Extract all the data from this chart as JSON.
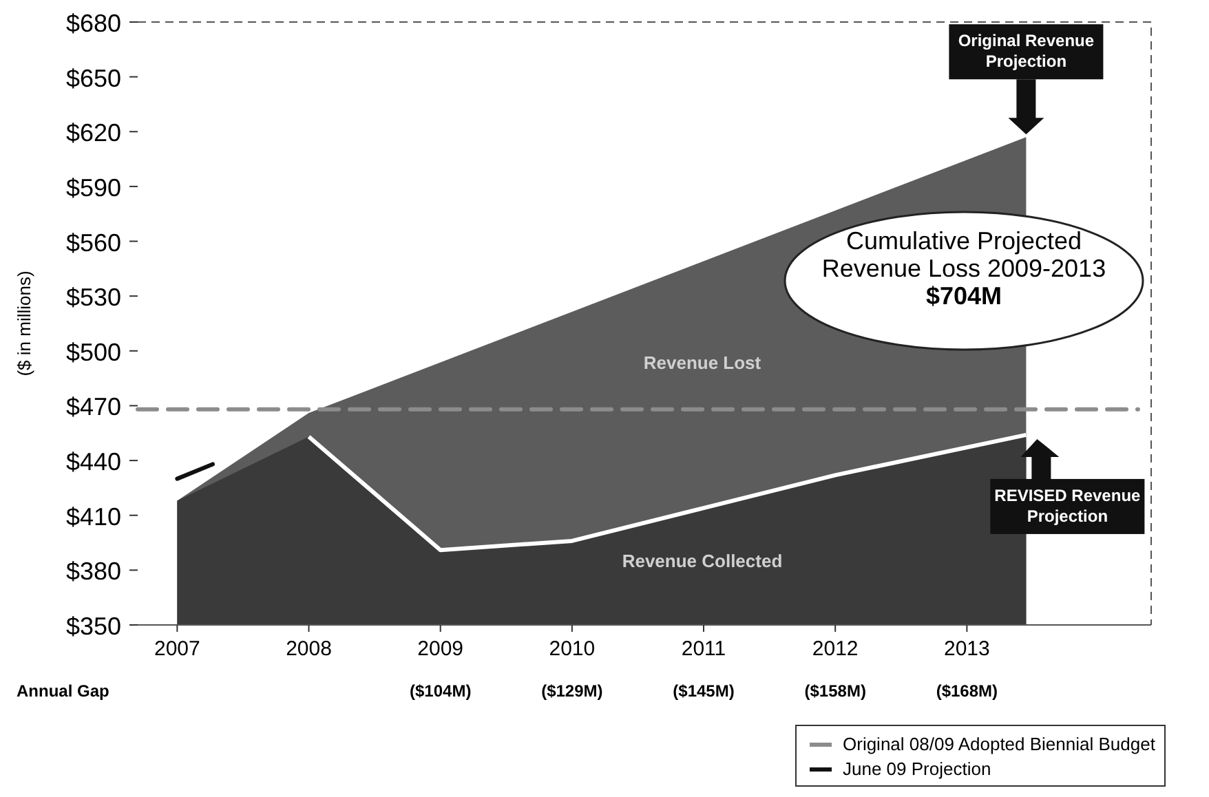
{
  "chart_data": {
    "type": "area",
    "ylabel": "($ in millions)",
    "xlim": [
      2006.7,
      2014.4
    ],
    "xticks": [
      2007,
      2008,
      2009,
      2010,
      2011,
      2012,
      2013
    ],
    "ylim": [
      350,
      680
    ],
    "yticks": [
      {
        "value": 350,
        "label": "$350"
      },
      {
        "value": 380,
        "label": "$380"
      },
      {
        "value": 410,
        "label": "$410"
      },
      {
        "value": 440,
        "label": "$440"
      },
      {
        "value": 470,
        "label": "$470"
      },
      {
        "value": 500,
        "label": "$500"
      },
      {
        "value": 530,
        "label": "$530"
      },
      {
        "value": 560,
        "label": "$560"
      },
      {
        "value": 590,
        "label": "$590"
      },
      {
        "value": 620,
        "label": "$620"
      },
      {
        "value": 650,
        "label": "$650"
      },
      {
        "value": 680,
        "label": "$680"
      }
    ],
    "series": [
      {
        "color": "#5c5c5c",
        "x": [
          2007,
          2008,
          2013.45
        ],
        "values": [
          418,
          466,
          617
        ]
      },
      {
        "color": "#3a3a3a",
        "x": [
          2007,
          2008,
          2009,
          2010,
          2011,
          2012,
          2013.45
        ],
        "values": [
          418,
          453,
          391,
          396,
          414,
          432,
          454
        ]
      },
      {
        "type": "line",
        "name": "Original 08/09 Adopted Biennial Budget",
        "color": "#8c8c8c",
        "line_style": "dashed",
        "x": [
          2006.7,
          2014.3
        ],
        "values": [
          468,
          468
        ]
      },
      {
        "type": "line",
        "name": "June 09 Projection",
        "color": "#111111",
        "line_style": "solid",
        "x": [
          2007,
          2007.27
        ],
        "values": [
          430,
          438
        ]
      }
    ],
    "annotations": [
      "Original Revenue\nProjection",
      "REVISED Revenue\nProjection",
      "Cumulative Projected\nRevenue Loss 2009-2013\n$704M",
      "Revenue Lost",
      "Revenue Collected",
      "Annual Gap",
      "($104M)",
      "($129M)",
      "($145M)",
      "($158M)",
      "($168M)"
    ],
    "grid": false,
    "legend": "bottom right"
  }
}
